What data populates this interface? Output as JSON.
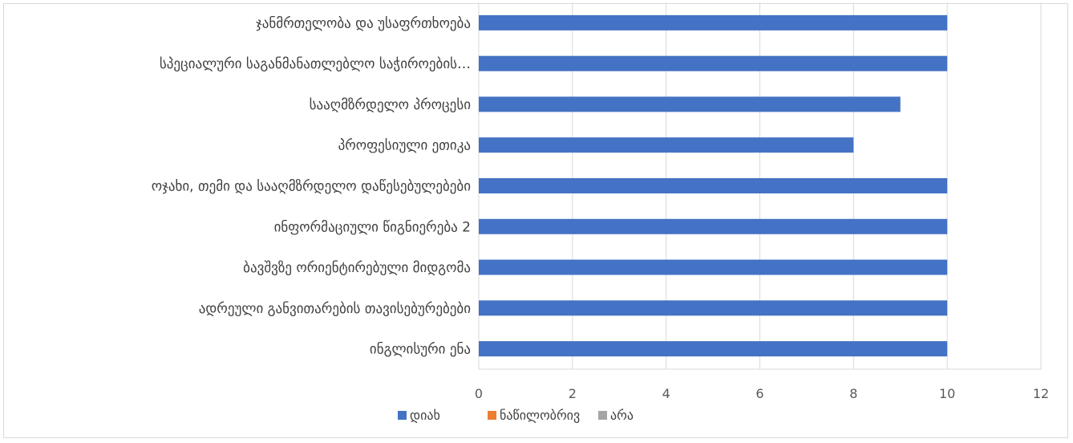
{
  "chart_data": {
    "type": "bar",
    "orientation": "horizontal",
    "categories": [
      "ჯანმრთელობა და უსაფრთხოება",
      "სპეციალური საგანმანათლებლო საჭიროების…",
      "სააღმზრდელო პროცესი",
      "პროფესიული ეთიკა",
      "ოჯახი, თემი და სააღმზრდელო დაწესებულებები",
      "ინფორმაციული წიგნიერება 2",
      "ბავშვზე ორიენტირებული მიდგომა",
      "ადრეული განვითარების თავისებურებები",
      "ინგლისური ენა"
    ],
    "series": [
      {
        "name": "დიახ",
        "color": "#4472C4",
        "values": [
          10,
          10,
          9,
          8,
          10,
          10,
          10,
          10,
          10
        ]
      },
      {
        "name": "ნაწილობრივ",
        "color": "#ED7D31",
        "values": [
          0,
          0,
          0,
          0,
          0,
          0,
          0,
          0,
          0
        ]
      },
      {
        "name": "არა",
        "color": "#A5A5A5",
        "values": [
          0,
          0,
          0,
          0,
          0,
          0,
          0,
          0,
          0
        ]
      }
    ],
    "xlim": [
      0,
      12
    ],
    "xticks": [
      "0",
      "2",
      "4",
      "6",
      "8",
      "10",
      "12"
    ],
    "grid": true,
    "legend_position": "bottom"
  }
}
